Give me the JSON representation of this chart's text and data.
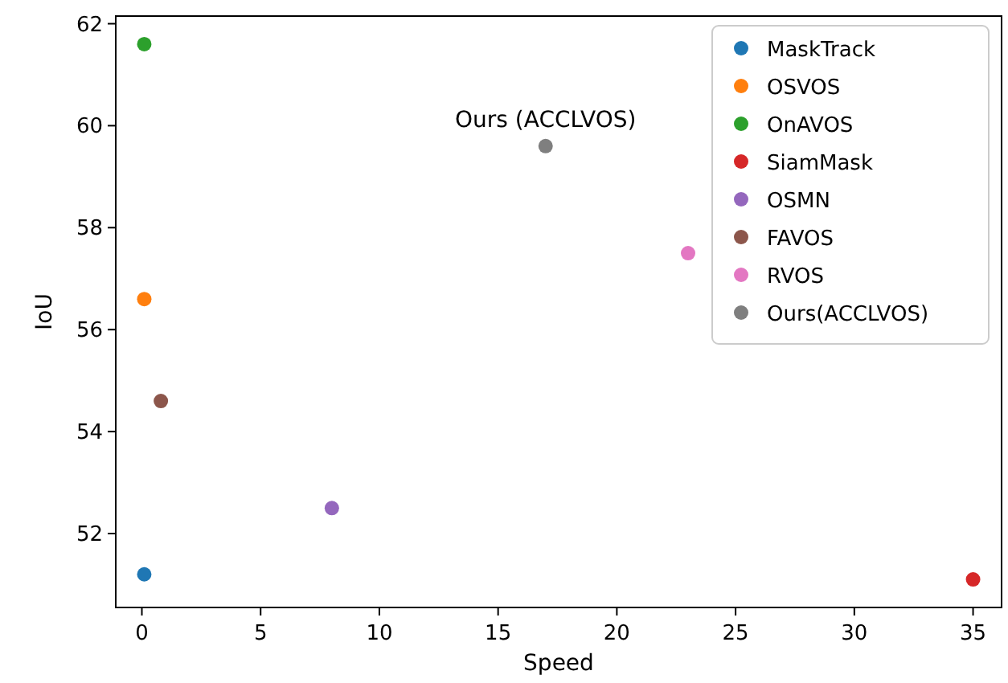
{
  "chart_data": {
    "type": "scatter",
    "xlabel": "Speed",
    "ylabel": "IoU",
    "xlim": [
      -1.1,
      36.2
    ],
    "ylim": [
      50.55,
      62.15
    ],
    "xticks": [
      0,
      5,
      10,
      15,
      20,
      25,
      30,
      35
    ],
    "yticks": [
      52,
      54,
      56,
      58,
      60,
      62
    ],
    "grid": false,
    "legend": "top right",
    "marker": "circle",
    "series": [
      {
        "name": "MaskTrack",
        "color": "#1f77b4",
        "x": [
          0.1
        ],
        "values": [
          51.2
        ]
      },
      {
        "name": "OSVOS",
        "color": "#ff7f0e",
        "x": [
          0.1
        ],
        "values": [
          56.6
        ]
      },
      {
        "name": "OnAVOS",
        "color": "#2ca02c",
        "x": [
          0.1
        ],
        "values": [
          61.6
        ]
      },
      {
        "name": "SiamMask",
        "color": "#d62728",
        "x": [
          35
        ],
        "values": [
          51.1
        ]
      },
      {
        "name": "OSMN",
        "color": "#9467bd",
        "x": [
          8
        ],
        "values": [
          52.5
        ]
      },
      {
        "name": "FAVOS",
        "color": "#8c564b",
        "x": [
          0.8
        ],
        "values": [
          54.6
        ]
      },
      {
        "name": "RVOS",
        "color": "#e377c2",
        "x": [
          23
        ],
        "values": [
          57.5
        ]
      },
      {
        "name": "Ours(ACCLVOS)",
        "color": "#7f7f7f",
        "x": [
          17
        ],
        "values": [
          59.6
        ]
      }
    ],
    "annotations": [
      {
        "text": "Ours (ACCLVOS)",
        "x": 17,
        "y": 59.6
      }
    ]
  }
}
